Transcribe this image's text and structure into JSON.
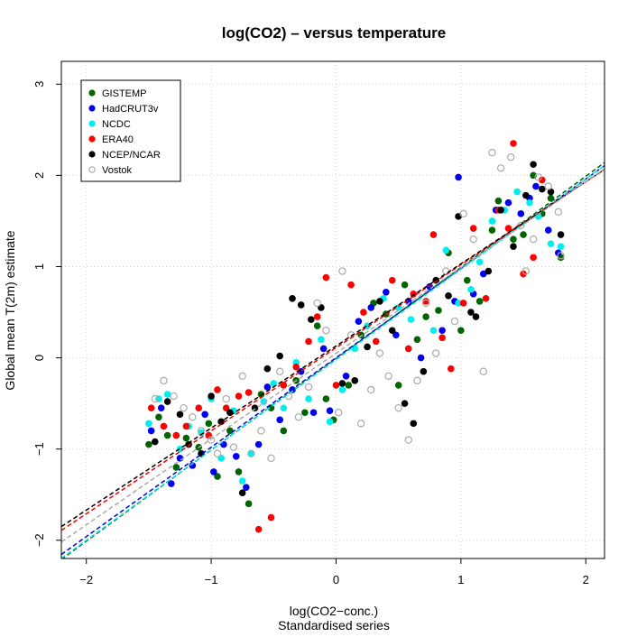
{
  "chart_data": {
    "type": "scatter",
    "title": "log(CO2) – versus temperature",
    "xlabel": "log(CO2−conc.)",
    "xlabel2": "Standardised series",
    "ylabel": "Global mean T(2m) estimate",
    "xlim": [
      -2.2,
      2.15
    ],
    "ylim": [
      -2.2,
      3.25
    ],
    "xticks": [
      -2,
      -1,
      0,
      1,
      2
    ],
    "xtick_labels": [
      "−2",
      "−1",
      "0",
      "1",
      "2"
    ],
    "yticks": [
      -2,
      -1,
      0,
      1,
      2,
      3
    ],
    "ytick_labels": [
      "−2",
      "−1",
      "0",
      "1",
      "2",
      "3"
    ],
    "grid": true,
    "legend_position": "top-left",
    "series": [
      {
        "name": "GISTEMP",
        "color": "#006400",
        "marker": "filled-circle",
        "fit": {
          "slope": 1.0,
          "intercept": -0.01
        },
        "points": [
          [
            -1.5,
            -0.95
          ],
          [
            -1.42,
            -0.65
          ],
          [
            -1.35,
            -0.85
          ],
          [
            -1.28,
            -1.2
          ],
          [
            -1.2,
            -0.88
          ],
          [
            -1.1,
            -0.98
          ],
          [
            -1.02,
            -0.72
          ],
          [
            -0.95,
            -1.3
          ],
          [
            -0.85,
            -0.8
          ],
          [
            -0.78,
            -1.25
          ],
          [
            -0.7,
            -1.6
          ],
          [
            -0.6,
            -0.4
          ],
          [
            -0.52,
            -0.55
          ],
          [
            -0.42,
            -0.8
          ],
          [
            -0.32,
            -0.25
          ],
          [
            -0.25,
            -0.6
          ],
          [
            -0.15,
            0.35
          ],
          [
            -0.08,
            -0.45
          ],
          [
            -0.02,
            -0.68
          ],
          [
            0.1,
            -0.3
          ],
          [
            0.2,
            0.25
          ],
          [
            0.3,
            0.6
          ],
          [
            0.4,
            0.48
          ],
          [
            0.5,
            -0.3
          ],
          [
            0.55,
            0.8
          ],
          [
            0.65,
            0.2
          ],
          [
            0.72,
            0.45
          ],
          [
            0.82,
            0.52
          ],
          [
            0.9,
            1.15
          ],
          [
            1.0,
            0.3
          ],
          [
            1.05,
            0.85
          ],
          [
            1.15,
            0.62
          ],
          [
            1.25,
            1.4
          ],
          [
            1.3,
            1.72
          ],
          [
            1.42,
            1.3
          ],
          [
            1.5,
            1.35
          ],
          [
            1.58,
            2.0
          ],
          [
            1.65,
            1.58
          ],
          [
            1.72,
            1.75
          ],
          [
            1.8,
            1.1
          ]
        ]
      },
      {
        "name": "HadCRUT3v",
        "color": "#0000ee",
        "marker": "filled-circle",
        "fit": {
          "slope": 0.98,
          "intercept": 0.0
        },
        "points": [
          [
            -1.48,
            -0.8
          ],
          [
            -1.4,
            -0.55
          ],
          [
            -1.32,
            -1.38
          ],
          [
            -1.25,
            -1.1
          ],
          [
            -1.15,
            -1.18
          ],
          [
            -1.05,
            -0.62
          ],
          [
            -0.98,
            -1.25
          ],
          [
            -0.9,
            -0.95
          ],
          [
            -0.8,
            -1.08
          ],
          [
            -0.72,
            -1.42
          ],
          [
            -0.62,
            -0.95
          ],
          [
            -0.55,
            -0.32
          ],
          [
            -0.45,
            -0.68
          ],
          [
            -0.35,
            -0.35
          ],
          [
            -0.28,
            -0.15
          ],
          [
            -0.18,
            -0.6
          ],
          [
            -0.1,
            0.1
          ],
          [
            -0.05,
            -0.58
          ],
          [
            0.08,
            -0.2
          ],
          [
            0.18,
            0.4
          ],
          [
            0.28,
            0.55
          ],
          [
            0.4,
            0.72
          ],
          [
            0.48,
            0.25
          ],
          [
            0.58,
            0.62
          ],
          [
            0.68,
            0.0
          ],
          [
            0.75,
            0.78
          ],
          [
            0.85,
            0.3
          ],
          [
            0.95,
            0.62
          ],
          [
            0.98,
            1.98
          ],
          [
            1.1,
            0.7
          ],
          [
            1.18,
            0.92
          ],
          [
            1.28,
            1.62
          ],
          [
            1.38,
            1.7
          ],
          [
            1.48,
            1.58
          ],
          [
            1.55,
            1.75
          ],
          [
            1.6,
            1.88
          ],
          [
            1.7,
            1.4
          ],
          [
            1.78,
            1.15
          ]
        ]
      },
      {
        "name": "NCDC",
        "color": "#00eeee",
        "marker": "filled-circle",
        "fit": {
          "slope": 0.99,
          "intercept": -0.02
        },
        "points": [
          [
            -1.5,
            -0.72
          ],
          [
            -1.42,
            -0.45
          ],
          [
            -1.35,
            -0.4
          ],
          [
            -1.25,
            -1.0
          ],
          [
            -1.18,
            -0.75
          ],
          [
            -1.08,
            -0.82
          ],
          [
            -1.0,
            -0.45
          ],
          [
            -0.92,
            -1.1
          ],
          [
            -0.82,
            -0.58
          ],
          [
            -0.75,
            -1.35
          ],
          [
            -0.68,
            -1.05
          ],
          [
            -0.58,
            -0.48
          ],
          [
            -0.5,
            -0.28
          ],
          [
            -0.42,
            -0.55
          ],
          [
            -0.32,
            -0.05
          ],
          [
            -0.22,
            -0.45
          ],
          [
            -0.12,
            0.2
          ],
          [
            -0.05,
            -0.7
          ],
          [
            0.05,
            -0.35
          ],
          [
            0.15,
            0.1
          ],
          [
            0.25,
            0.35
          ],
          [
            0.38,
            0.65
          ],
          [
            0.5,
            0.55
          ],
          [
            0.6,
            0.42
          ],
          [
            0.7,
            -0.15
          ],
          [
            0.78,
            0.3
          ],
          [
            0.88,
            1.18
          ],
          [
            0.98,
            0.6
          ],
          [
            1.08,
            0.75
          ],
          [
            1.15,
            1.05
          ],
          [
            1.25,
            1.5
          ],
          [
            1.35,
            1.62
          ],
          [
            1.45,
            1.82
          ],
          [
            1.55,
            1.7
          ],
          [
            1.62,
            1.55
          ],
          [
            1.72,
            1.25
          ],
          [
            1.8,
            1.22
          ]
        ]
      },
      {
        "name": "ERA40",
        "color": "#ff0000",
        "marker": "filled-circle",
        "fit": {
          "slope": 0.91,
          "intercept": 0.11
        },
        "points": [
          [
            -1.48,
            -0.55
          ],
          [
            -1.38,
            -0.75
          ],
          [
            -1.28,
            -0.85
          ],
          [
            -1.2,
            -0.75
          ],
          [
            -1.1,
            -0.55
          ],
          [
            -1.02,
            -0.85
          ],
          [
            -0.95,
            -0.35
          ],
          [
            -0.88,
            -0.55
          ],
          [
            -0.78,
            -0.42
          ],
          [
            -0.7,
            -0.38
          ],
          [
            -0.62,
            -1.88
          ],
          [
            -0.52,
            -1.75
          ],
          [
            -0.42,
            -0.3
          ],
          [
            -0.32,
            -0.1
          ],
          [
            -0.22,
            0.18
          ],
          [
            -0.15,
            0.45
          ],
          [
            -0.08,
            0.88
          ],
          [
            0.0,
            -0.3
          ],
          [
            0.12,
            0.8
          ],
          [
            0.22,
            0.5
          ],
          [
            0.32,
            0.18
          ],
          [
            0.45,
            0.85
          ],
          [
            0.58,
            0.1
          ],
          [
            0.62,
            0.7
          ],
          [
            0.72,
            0.62
          ],
          [
            0.78,
            1.35
          ],
          [
            0.85,
            0.22
          ],
          [
            0.92,
            -0.12
          ],
          [
            1.02,
            0.6
          ],
          [
            1.1,
            1.42
          ],
          [
            1.2,
            0.65
          ],
          [
            1.3,
            1.62
          ],
          [
            1.38,
            1.42
          ],
          [
            1.42,
            2.35
          ],
          [
            1.5,
            0.92
          ],
          [
            1.58,
            1.1
          ],
          [
            1.65,
            1.95
          ]
        ]
      },
      {
        "name": "NCEP/NCAR",
        "color": "#000000",
        "marker": "filled-circle",
        "fit": {
          "slope": 0.9,
          "intercept": 0.13
        },
        "points": [
          [
            -1.45,
            -0.92
          ],
          [
            -1.35,
            -0.48
          ],
          [
            -1.25,
            -0.62
          ],
          [
            -1.18,
            -0.95
          ],
          [
            -1.08,
            -1.05
          ],
          [
            -1.0,
            -0.42
          ],
          [
            -0.92,
            -0.7
          ],
          [
            -0.85,
            -0.6
          ],
          [
            -0.75,
            -1.48
          ],
          [
            -0.65,
            -0.55
          ],
          [
            -0.55,
            -0.12
          ],
          [
            -0.45,
            0.02
          ],
          [
            -0.35,
            0.65
          ],
          [
            -0.28,
            0.58
          ],
          [
            -0.2,
            0.42
          ],
          [
            -0.12,
            0.55
          ],
          [
            0.05,
            -0.28
          ],
          [
            0.15,
            -0.25
          ],
          [
            0.25,
            0.12
          ],
          [
            0.35,
            0.62
          ],
          [
            0.45,
            0.3
          ],
          [
            0.55,
            -0.5
          ],
          [
            0.62,
            -0.72
          ],
          [
            0.7,
            -0.15
          ],
          [
            0.8,
            0.85
          ],
          [
            0.9,
            0.68
          ],
          [
            0.98,
            1.55
          ],
          [
            1.08,
            0.5
          ],
          [
            1.12,
            0.45
          ],
          [
            1.22,
            0.95
          ],
          [
            1.32,
            1.62
          ],
          [
            1.42,
            1.22
          ],
          [
            1.52,
            1.78
          ],
          [
            1.58,
            2.12
          ],
          [
            1.65,
            1.85
          ],
          [
            1.72,
            1.82
          ],
          [
            1.8,
            1.35
          ]
        ]
      },
      {
        "name": "Vostok",
        "color": "#aaaaaa",
        "marker": "open-circle",
        "fit": {
          "slope": 0.94,
          "intercept": 0.05
        },
        "points": [
          [
            -1.45,
            -0.45
          ],
          [
            -1.38,
            -0.25
          ],
          [
            -1.3,
            -0.42
          ],
          [
            -1.22,
            -0.55
          ],
          [
            -1.15,
            -0.65
          ],
          [
            -1.08,
            -0.8
          ],
          [
            -1.0,
            -0.9
          ],
          [
            -0.95,
            -1.05
          ],
          [
            -0.88,
            -0.45
          ],
          [
            -0.82,
            -0.98
          ],
          [
            -0.75,
            -0.2
          ],
          [
            -0.68,
            -1.05
          ],
          [
            -0.6,
            -0.8
          ],
          [
            -0.52,
            -1.1
          ],
          [
            -0.45,
            -0.15
          ],
          [
            -0.38,
            -0.42
          ],
          [
            -0.3,
            -0.65
          ],
          [
            -0.22,
            -0.32
          ],
          [
            -0.15,
            0.6
          ],
          [
            -0.08,
            0.3
          ],
          [
            0.02,
            -0.6
          ],
          [
            0.05,
            0.95
          ],
          [
            0.12,
            0.25
          ],
          [
            0.2,
            -0.72
          ],
          [
            0.28,
            -0.35
          ],
          [
            0.35,
            0.05
          ],
          [
            0.42,
            -0.2
          ],
          [
            0.5,
            -0.55
          ],
          [
            0.58,
            -0.9
          ],
          [
            0.65,
            -0.25
          ],
          [
            0.72,
            0.6
          ],
          [
            0.8,
            0.05
          ],
          [
            0.88,
            0.95
          ],
          [
            0.95,
            0.4
          ],
          [
            1.02,
            1.58
          ],
          [
            1.1,
            1.3
          ],
          [
            1.18,
            -0.15
          ],
          [
            1.25,
            2.25
          ],
          [
            1.32,
            2.08
          ],
          [
            1.4,
            2.2
          ],
          [
            1.48,
            1.45
          ],
          [
            1.52,
            0.95
          ],
          [
            1.58,
            1.3
          ],
          [
            1.62,
            1.98
          ],
          [
            1.7,
            1.88
          ],
          [
            1.78,
            1.6
          ],
          [
            1.8,
            1.12
          ]
        ]
      }
    ]
  }
}
